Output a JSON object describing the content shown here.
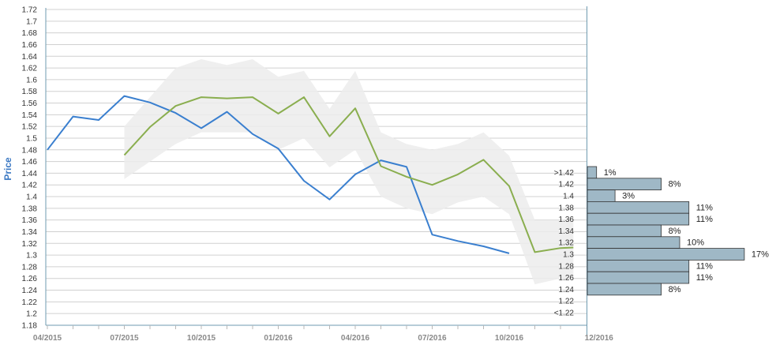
{
  "colors": {
    "history": "#3a7fcf",
    "forecast": "#8aae4f",
    "band": "#ececec",
    "bars": "#9fb8c6",
    "bar_stroke": "#333333",
    "grid": "#d0d0d0",
    "axis": "#6f9bb0"
  },
  "chart_data": {
    "type": "line",
    "ylabel": "Price",
    "ylim": [
      1.18,
      1.72
    ],
    "yticks": [
      "1.18",
      "1.2",
      "1.22",
      "1.24",
      "1.26",
      "1.28",
      "1.3",
      "1.32",
      "1.34",
      "1.36",
      "1.38",
      "1.4",
      "1.42",
      "1.44",
      "1.46",
      "1.48",
      "1.5",
      "1.52",
      "1.54",
      "1.56",
      "1.58",
      "1.6",
      "1.62",
      "1.64",
      "1.66",
      "1.68",
      "1.7",
      "1.72"
    ],
    "grid": true,
    "x_labels": [
      {
        "label": "04/2015",
        "t": 0
      },
      {
        "label": "07/2015",
        "t": 3
      },
      {
        "label": "10/2015",
        "t": 6
      },
      {
        "label": "01/2016",
        "t": 9
      },
      {
        "label": "04/2016",
        "t": 12
      },
      {
        "label": "07/2016",
        "t": 15
      },
      {
        "label": "10/2016",
        "t": 18
      },
      {
        "label": "12/2016",
        "t": 21.5
      }
    ],
    "series": [
      {
        "key": "history",
        "x": [
          0,
          1,
          2,
          3,
          4,
          5,
          6,
          7,
          8,
          9,
          10,
          11,
          12,
          13,
          14,
          15,
          16,
          17,
          18
        ],
        "y": [
          1.48,
          1.537,
          1.531,
          1.572,
          1.561,
          1.543,
          1.517,
          1.545,
          1.507,
          1.482,
          1.427,
          1.395,
          1.438,
          1.462,
          1.451,
          1.335,
          1.324,
          1.315,
          1.303
        ]
      },
      {
        "key": "forecast",
        "x": [
          3,
          4,
          5,
          6,
          7,
          8,
          9,
          10,
          11,
          12,
          13,
          14,
          15,
          16,
          17,
          18,
          19,
          20,
          20.5
        ],
        "y": [
          1.471,
          1.519,
          1.555,
          1.57,
          1.568,
          1.57,
          1.542,
          1.57,
          1.503,
          1.551,
          1.452,
          1.434,
          1.42,
          1.438,
          1.463,
          1.418,
          1.305,
          1.312,
          1.313
        ]
      }
    ],
    "band": {
      "x": [
        3,
        4,
        5,
        6,
        7,
        8,
        9,
        10,
        11,
        12,
        13,
        14,
        15,
        16,
        17,
        18,
        19,
        20,
        20.5
      ],
      "lower": [
        1.43,
        1.46,
        1.49,
        1.51,
        1.51,
        1.51,
        1.48,
        1.5,
        1.45,
        1.48,
        1.4,
        1.38,
        1.37,
        1.39,
        1.4,
        1.37,
        1.25,
        1.26,
        1.26
      ],
      "upper": [
        1.52,
        1.57,
        1.62,
        1.635,
        1.625,
        1.635,
        1.605,
        1.615,
        1.55,
        1.615,
        1.51,
        1.49,
        1.48,
        1.49,
        1.51,
        1.47,
        1.36,
        1.36,
        1.365
      ]
    },
    "distribution": {
      "bins": [
        {
          "label": ">1.42",
          "pct": 1,
          "pct_label": "1%"
        },
        {
          "label": "1.42",
          "pct": 8,
          "pct_label": "8%"
        },
        {
          "label": "1.4",
          "pct": 3,
          "pct_label": "3%"
        },
        {
          "label": "1.38",
          "pct": 11,
          "pct_label": "11%"
        },
        {
          "label": "1.36",
          "pct": 11,
          "pct_label": "11%"
        },
        {
          "label": "1.34",
          "pct": 8,
          "pct_label": "8%"
        },
        {
          "label": "1.32",
          "pct": 10,
          "pct_label": "10%"
        },
        {
          "label": "1.3",
          "pct": 17,
          "pct_label": "17%"
        },
        {
          "label": "1.28",
          "pct": 11,
          "pct_label": "11%"
        },
        {
          "label": "1.26",
          "pct": 11,
          "pct_label": "11%"
        },
        {
          "label": "1.24",
          "pct": 8,
          "pct_label": "8%"
        },
        {
          "label": "1.22",
          "pct": null,
          "pct_label": ""
        },
        {
          "label": "<1.22",
          "pct": null,
          "pct_label": ""
        }
      ]
    }
  }
}
